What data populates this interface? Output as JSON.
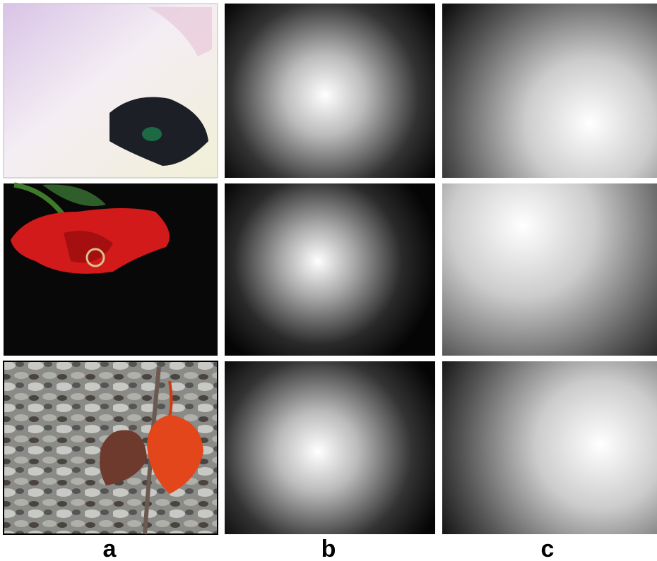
{
  "labels": [
    "a",
    "b",
    "c"
  ]
}
